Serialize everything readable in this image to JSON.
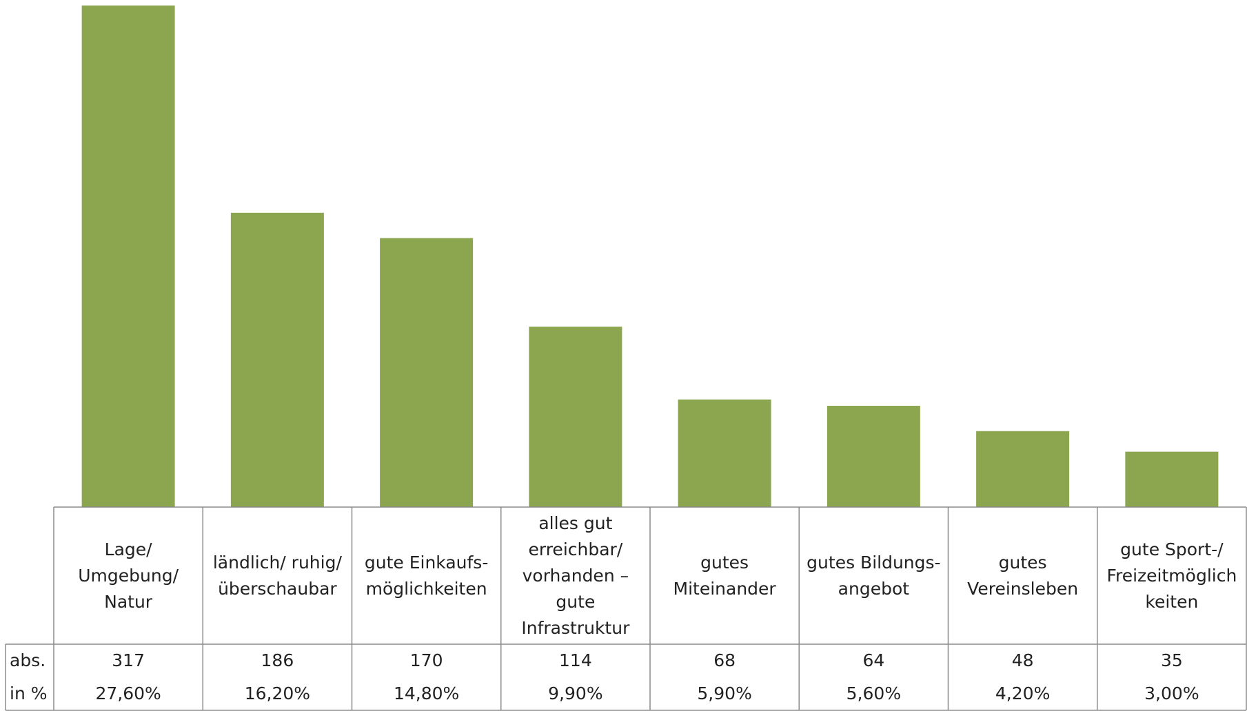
{
  "chart_data": {
    "type": "bar",
    "categories": [
      "Lage/ Umgebung/ Natur",
      "ländlich/ ruhig/ überschaubar",
      "gute Einkaufs- möglichkeiten",
      "alles gut erreichbar/ vorhanden – gute Infrastruktur",
      "gutes Miteinander",
      "gutes Bildungs- angebot",
      "gutes Vereinsleben",
      "gute Sport-/ Freizeitmöglich keiten"
    ],
    "values": [
      317,
      186,
      170,
      114,
      68,
      64,
      48,
      35
    ],
    "table": {
      "row_labels": [
        "abs.",
        "in %"
      ],
      "abs": [
        "317",
        "186",
        "170",
        "114",
        "68",
        "64",
        "48",
        "35"
      ],
      "percent": [
        "27,60%",
        "16,20%",
        "14,80%",
        "9,90%",
        "5,90%",
        "5,60%",
        "4,20%",
        "3,00%"
      ]
    },
    "ylim": [
      0,
      317
    ],
    "bar_color": "#8ba64f",
    "grid": false,
    "title": "",
    "xlabel": "",
    "ylabel": ""
  }
}
